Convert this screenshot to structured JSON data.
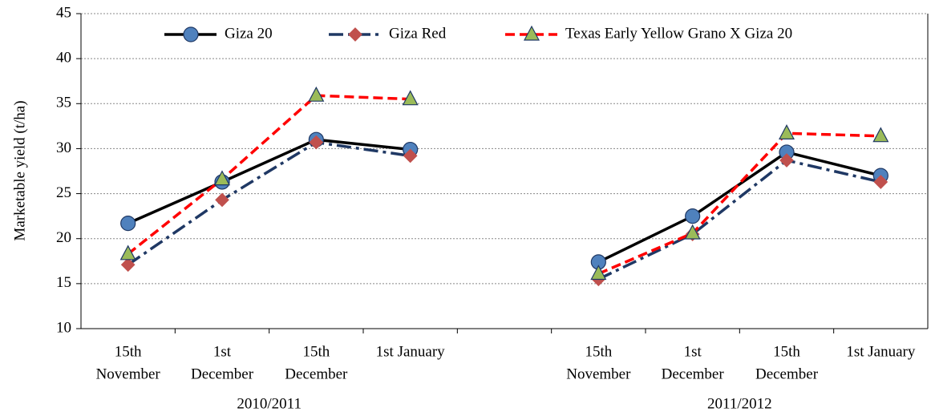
{
  "chart_data": {
    "type": "line",
    "y_label": "Marketable yield (t/ha)",
    "categories": [
      [
        "15th",
        "November"
      ],
      [
        "1st",
        "December"
      ],
      [
        "15th",
        "December"
      ],
      [
        "1st January"
      ],
      null,
      [
        "15th",
        "November"
      ],
      [
        "1st",
        "December"
      ],
      [
        "15th",
        "December"
      ],
      [
        "1st January"
      ]
    ],
    "groups": [
      "2010/2011",
      "2011/2012"
    ],
    "series": [
      {
        "name": "Giza 20",
        "color": "#000000",
        "marker_color": "#4f81bd",
        "marker": "circle",
        "dash": "solid",
        "values": [
          21.7,
          26.3,
          31.0,
          29.9,
          null,
          17.4,
          22.5,
          29.6,
          27.0
        ]
      },
      {
        "name": "Giza Red",
        "color": "#1f3864",
        "marker_color": "#c0504d",
        "marker": "diamond",
        "dash": "dashdot",
        "values": [
          17.1,
          24.3,
          30.7,
          29.2,
          null,
          15.5,
          20.5,
          28.7,
          26.3
        ]
      },
      {
        "name": "Texas Early Yellow Grano X Giza 20",
        "color": "#ff0000",
        "marker_color": "#9bbb59",
        "marker": "triangle",
        "dash": "dash",
        "values": [
          18.3,
          26.6,
          35.9,
          35.5,
          null,
          16.1,
          20.6,
          31.7,
          31.4
        ]
      }
    ],
    "ylim": [
      10,
      45
    ],
    "yticks": [
      10,
      15,
      20,
      25,
      30,
      35,
      40,
      45
    ],
    "grid": true,
    "legend": "top"
  }
}
